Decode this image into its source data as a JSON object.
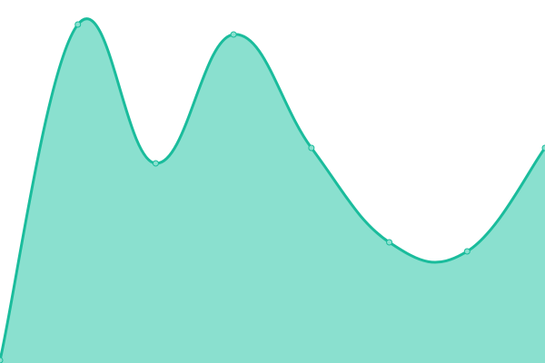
{
  "chart_data": {
    "type": "area",
    "x": [
      0,
      1,
      2,
      3,
      4,
      5,
      6,
      7
    ],
    "values": [
      3,
      373,
      220,
      362,
      237,
      133,
      123,
      237
    ],
    "ylim": [
      0,
      400
    ],
    "grid": false,
    "axes_visible": false,
    "smooth": true,
    "colors": {
      "line": "#1abc9c",
      "fill": "#8ae0cf",
      "point": "#8ae0cf"
    }
  }
}
